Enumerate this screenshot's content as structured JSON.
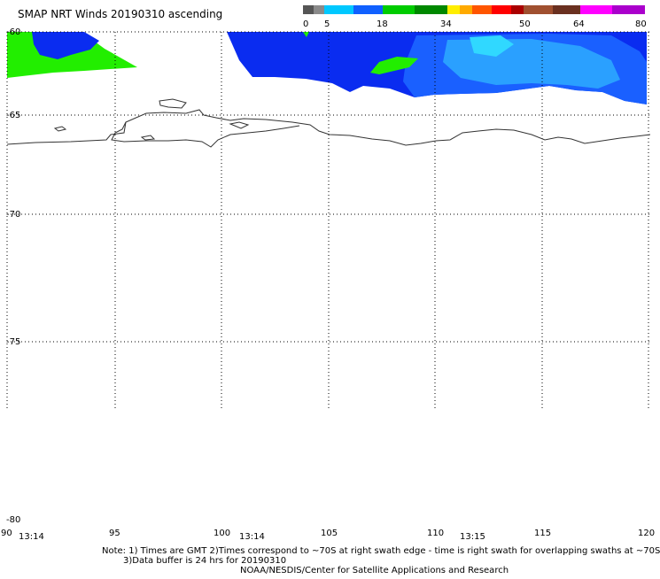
{
  "title": "SMAP NRT Winds 20190310 ascending",
  "colorbar": {
    "segments": [
      {
        "color": "#555555"
      },
      {
        "color": "#8a8a8a"
      },
      {
        "color": "#00c8ff"
      },
      {
        "color": "#1060ff"
      },
      {
        "color": "#00cc00"
      },
      {
        "color": "#008800"
      },
      {
        "color": "#ffee00"
      },
      {
        "color": "#ffaa00"
      },
      {
        "color": "#ff5500"
      },
      {
        "color": "#ff0000"
      },
      {
        "color": "#aa0000"
      },
      {
        "color": "#a05030"
      },
      {
        "color": "#6a3020"
      },
      {
        "color": "#ff00ff"
      },
      {
        "color": "#aa00cc"
      }
    ],
    "labels": [
      "0",
      "5",
      "18",
      "34",
      "50",
      "64",
      "80"
    ]
  },
  "axes": {
    "lat_labels": [
      "-60",
      "-65",
      "-70",
      "-75",
      "-80"
    ],
    "lon_labels": [
      "90",
      "95",
      "100",
      "105",
      "110",
      "115",
      "120"
    ],
    "times": [
      "13:14",
      "13:14",
      "13:15"
    ]
  },
  "notes": {
    "line1": "Note: 1) Times are GMT 2)Times correspond to ~70S at right swath edge - time is right swath for overlapping swaths at ~70S",
    "line2": "3)Data buffer is 24 hrs for 20190310",
    "credit": "NOAA/NESDIS/Center for Satellite Applications and Research"
  },
  "colors": {
    "deep_blue": "#0a2cf0",
    "mid_blue": "#1a60ff",
    "light_blue": "#2aa0ff",
    "cyan": "#30d8ff",
    "green": "#22ee00",
    "coast": "#333333"
  }
}
